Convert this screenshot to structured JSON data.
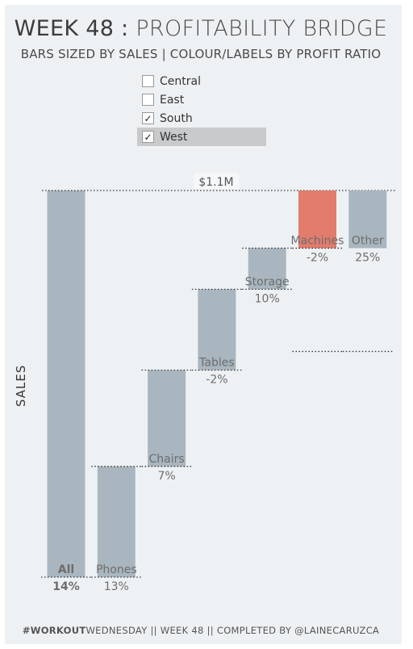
{
  "header": {
    "title_bold": "WEEK 48",
    "title_sep": " : ",
    "title_rest": "PROFITABILITY BRIDGE",
    "subtitle": "BARS SIZED BY SALES | COLOUR/LABELS BY PROFIT RATIO"
  },
  "filter": {
    "items": [
      {
        "label": "Central",
        "checked": false
      },
      {
        "label": "East",
        "checked": false
      },
      {
        "label": "South",
        "checked": true
      },
      {
        "label": "West",
        "checked": true
      }
    ]
  },
  "footer": {
    "hashtag_bold": "#WORKOUT",
    "hashtag_rest": "WEDNESDAY",
    "rest": " || WEEK 48 || COMPLETED BY @LAINECARUZCA"
  },
  "colors": {
    "positive": "#a9b6bf",
    "negative": "#e27c6d",
    "reference_line": "#333333"
  },
  "chart_data": {
    "type": "bar",
    "title": "",
    "ylabel": "SALES",
    "xlabel": "",
    "ylim": [
      0,
      1.1
    ],
    "total_label": "$1.1M",
    "categories": [
      "All",
      "Phones",
      "Chairs",
      "Tables",
      "Storage",
      "Machines",
      "Other"
    ],
    "start": [
      0,
      0,
      0.315,
      0.589,
      0.819,
      0.936,
      0.642
    ],
    "end": [
      1.1,
      0.315,
      0.589,
      0.819,
      0.936,
      0.642,
      1.1
    ],
    "bar_start": [
      0,
      0,
      0.315,
      0.589,
      0.819,
      0.936,
      0.936
    ],
    "bar_end": [
      1.1,
      0.315,
      0.589,
      0.819,
      0.936,
      1.1,
      1.1
    ],
    "profit_ratio_labels": [
      "14%",
      "13%",
      "7%",
      "-2%",
      "10%",
      "-2%",
      "25%"
    ]
  }
}
